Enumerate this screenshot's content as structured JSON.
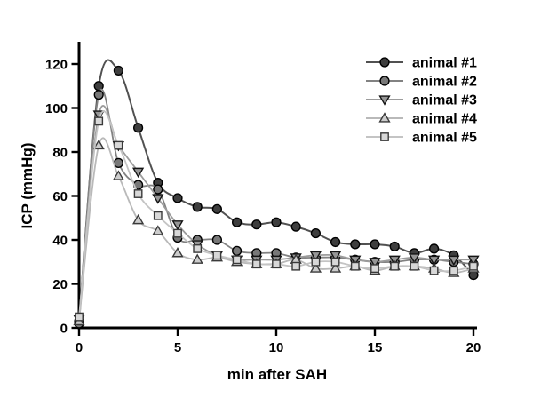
{
  "chart_data": {
    "type": "line",
    "title": "",
    "xlabel": "min after SAH",
    "ylabel": "ICP (mmHg)",
    "x": [
      0,
      1,
      2,
      3,
      4,
      5,
      6,
      7,
      8,
      9,
      10,
      11,
      12,
      13,
      14,
      15,
      16,
      17,
      18,
      19,
      20
    ],
    "xlim": [
      0,
      20
    ],
    "ylim": [
      0,
      120
    ],
    "xticks": [
      0,
      5,
      10,
      15,
      20
    ],
    "yticks": [
      0,
      20,
      40,
      60,
      80,
      100,
      120
    ],
    "grid": false,
    "line_style": "smooth-spline",
    "legend_position": "top-right",
    "axis_color": "#000000",
    "background_color": "#ffffff",
    "series": [
      {
        "name": "animal #1",
        "marker": "circle",
        "marker_fill": "#3e3e3e",
        "marker_edge": "#000000",
        "line_color": "#515151",
        "values": [
          3,
          110,
          117,
          91,
          66,
          59,
          55,
          54,
          48,
          47,
          48,
          46,
          43,
          39,
          38,
          38,
          37,
          34,
          36,
          33,
          24
        ]
      },
      {
        "name": "animal #2",
        "marker": "circle",
        "marker_fill": "#787878",
        "marker_edge": "#000000",
        "line_color": "#828282",
        "values": [
          2,
          106,
          75,
          65,
          63,
          41,
          40,
          40,
          35,
          34,
          34,
          32,
          32,
          32,
          31,
          30,
          30,
          31,
          31,
          30,
          29
        ]
      },
      {
        "name": "animal #3",
        "marker": "triangle-down",
        "marker_fill": "#969696",
        "marker_edge": "#141414",
        "line_color": "#9c9c9c",
        "values": [
          4,
          97,
          83,
          71,
          59,
          47,
          38,
          33,
          31,
          31,
          31,
          32,
          33,
          33,
          31,
          30,
          31,
          32,
          31,
          31,
          31
        ]
      },
      {
        "name": "animal #4",
        "marker": "triangle-up",
        "marker_fill": "#cccccc",
        "marker_edge": "#3a3a3a",
        "line_color": "#b9b9b9",
        "values": [
          3,
          83,
          69,
          49,
          44,
          34,
          31,
          32,
          30,
          29,
          29,
          31,
          27,
          27,
          28,
          26,
          28,
          28,
          27,
          25,
          27
        ]
      },
      {
        "name": "animal #5",
        "marker": "square",
        "marker_fill": "#d8d8d8",
        "marker_edge": "#3a3a3a",
        "line_color": "#c4c4c4",
        "values": [
          5,
          94,
          83,
          61,
          51,
          43,
          36,
          33,
          31,
          29,
          29,
          28,
          30,
          30,
          28,
          27,
          28,
          28,
          26,
          26,
          28
        ]
      }
    ]
  }
}
